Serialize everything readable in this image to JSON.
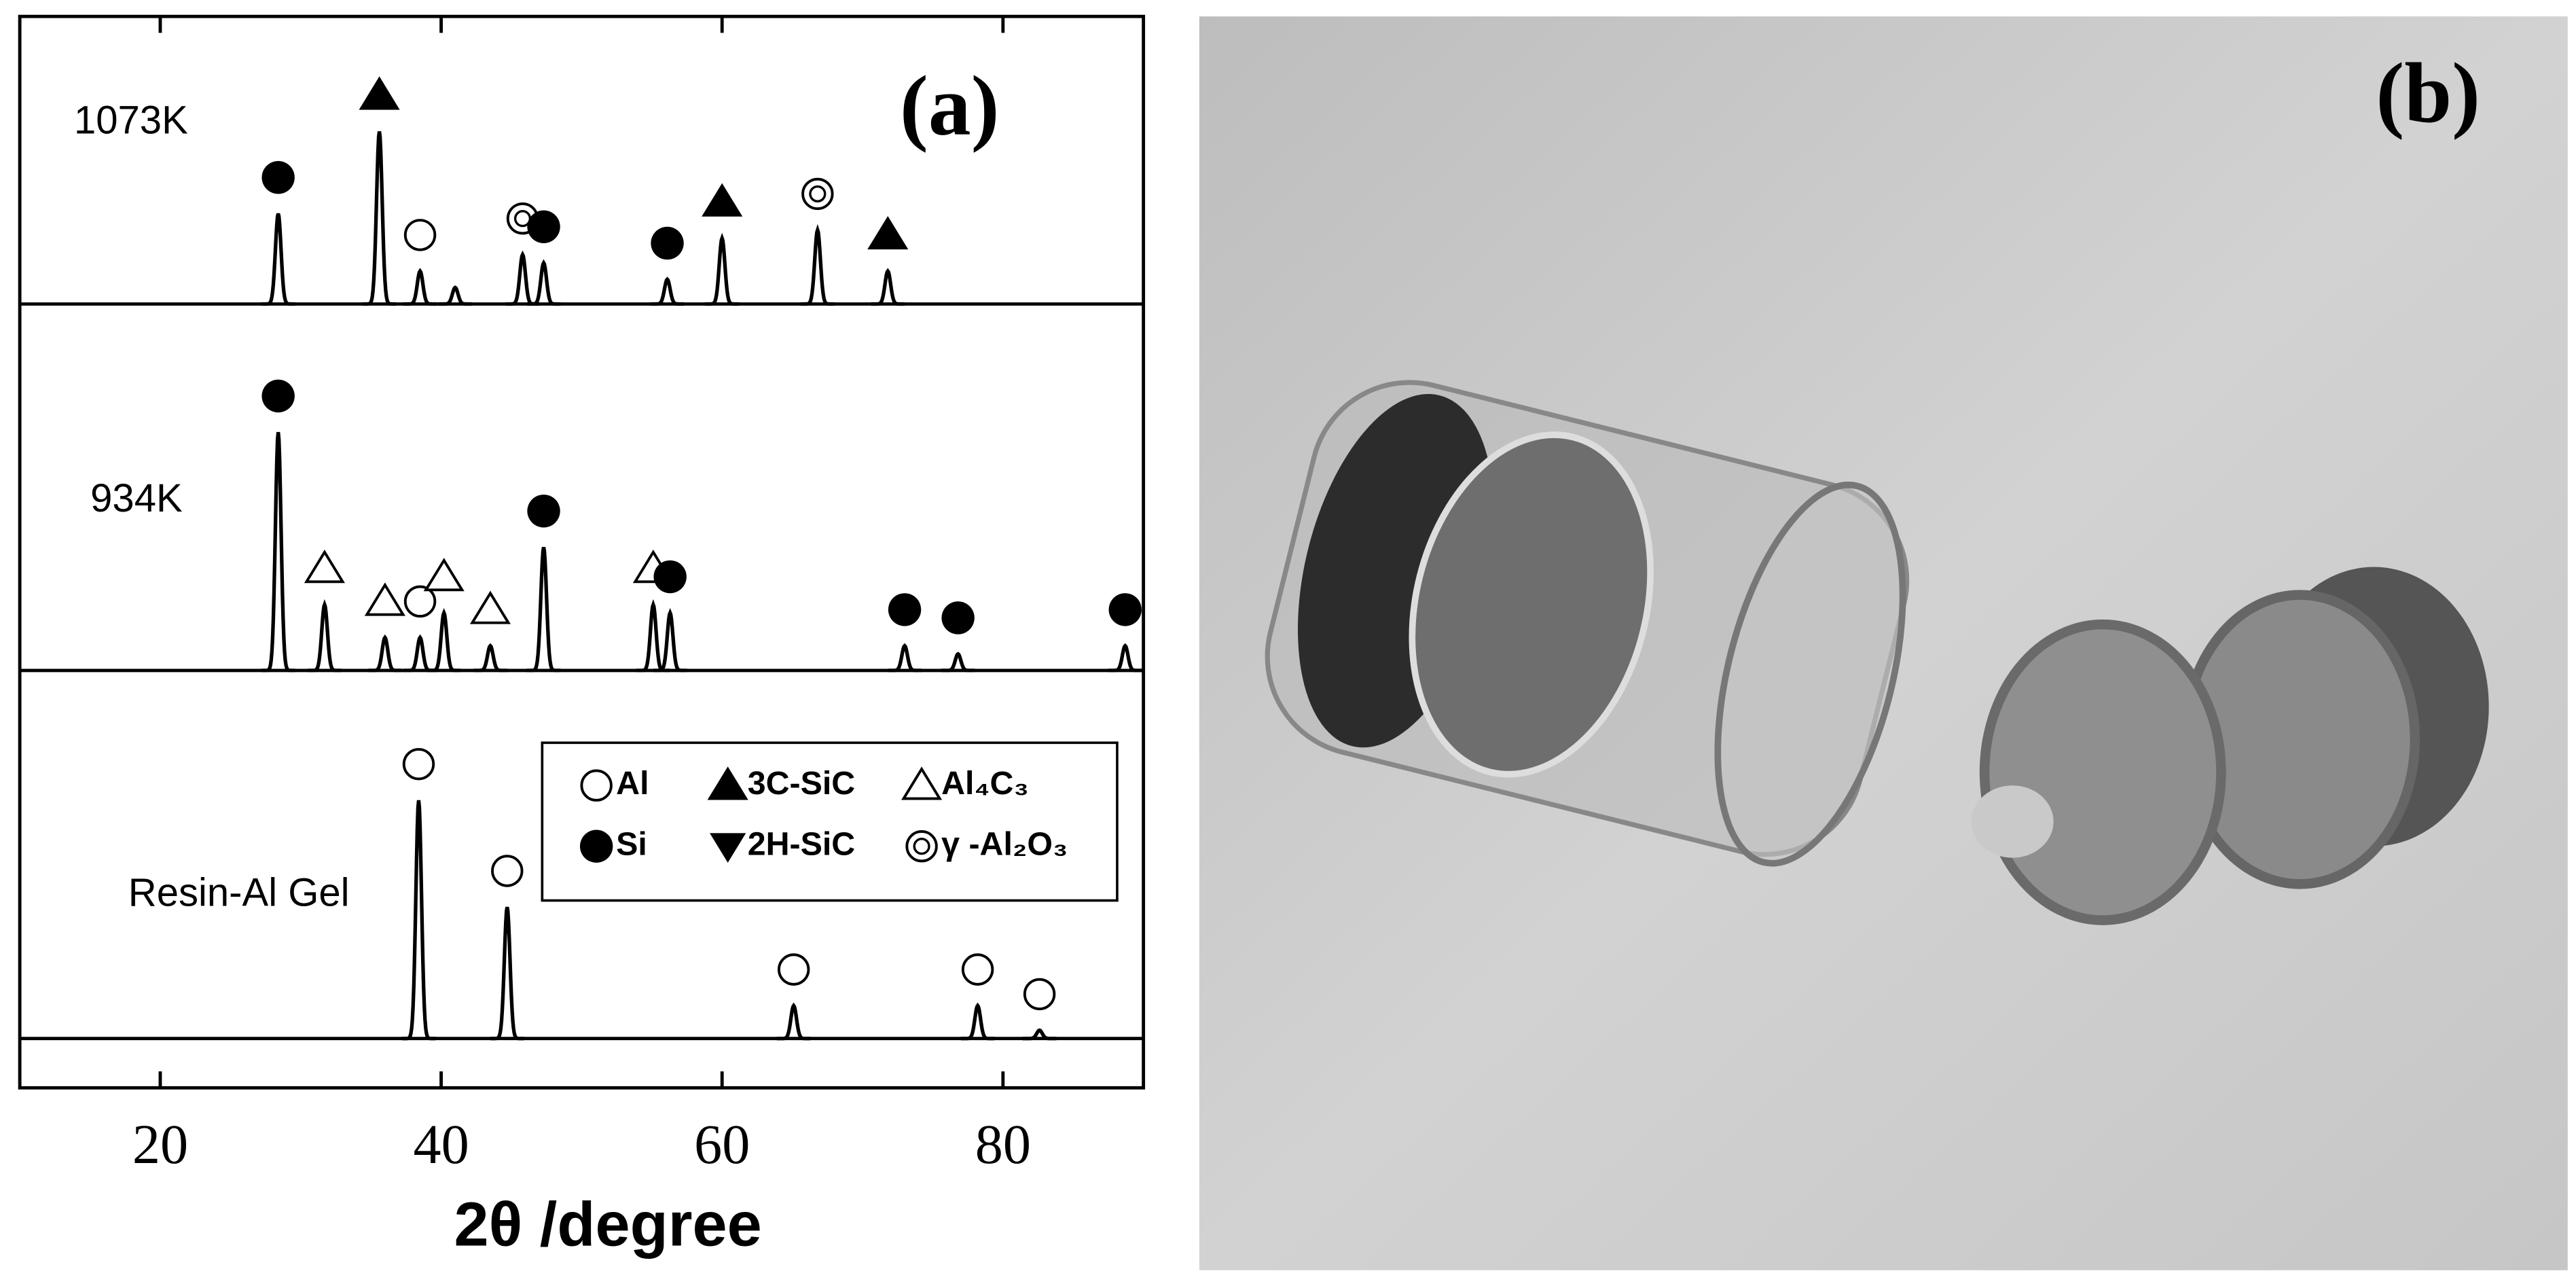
{
  "chart_data": {
    "type": "xrd-stack",
    "panel_label": "(a)",
    "x_label": "2θ /degree",
    "xlim": [
      10,
      90
    ],
    "xticks": [
      20,
      40,
      60,
      80
    ],
    "ylim": [
      0,
      652
    ],
    "legend": [
      {
        "name": "Al",
        "symbol": "open-circle"
      },
      {
        "name": "3C-SiC",
        "symbol": "filled-triangle-up"
      },
      {
        "name": "Al₄C₃",
        "symbol": "open-triangle-up"
      },
      {
        "name": "Si",
        "symbol": "filled-circle"
      },
      {
        "name": "2H-SiC",
        "symbol": "filled-triangle-down"
      },
      {
        "name": "γ -Al₂O₃",
        "symbol": "double-circle"
      }
    ],
    "series": [
      {
        "name": "1073K",
        "offset": 477,
        "peaks": [
          {
            "x": 28.4,
            "height": 55,
            "phase": "Si"
          },
          {
            "x": 35.6,
            "height": 105,
            "phase": "3C-SiC"
          },
          {
            "x": 38.5,
            "height": 20,
            "phase": "Al"
          },
          {
            "x": 41.0,
            "height": 10,
            "phase": null
          },
          {
            "x": 45.8,
            "height": 30,
            "phase": "γ -Al₂O₃"
          },
          {
            "x": 47.3,
            "height": 25,
            "phase": "Si"
          },
          {
            "x": 56.1,
            "height": 15,
            "phase": "Si"
          },
          {
            "x": 60.0,
            "height": 40,
            "phase": "3C-SiC"
          },
          {
            "x": 66.8,
            "height": 45,
            "phase": "γ -Al₂O₃"
          },
          {
            "x": 71.8,
            "height": 20,
            "phase": "3C-SiC"
          }
        ]
      },
      {
        "name": "934K",
        "offset": 254,
        "peaks": [
          {
            "x": 28.4,
            "height": 145,
            "phase": "Si"
          },
          {
            "x": 31.7,
            "height": 40,
            "phase": "Al₄C₃"
          },
          {
            "x": 36.0,
            "height": 20,
            "phase": "Al₄C₃"
          },
          {
            "x": 38.5,
            "height": 20,
            "phase": "Al"
          },
          {
            "x": 40.2,
            "height": 35,
            "phase": "Al₄C₃"
          },
          {
            "x": 43.5,
            "height": 15,
            "phase": "Al₄C₃"
          },
          {
            "x": 47.3,
            "height": 75,
            "phase": "Si"
          },
          {
            "x": 55.1,
            "height": 40,
            "phase": "Al₄C₃"
          },
          {
            "x": 56.3,
            "height": 35,
            "phase": "Si"
          },
          {
            "x": 73.0,
            "height": 15,
            "phase": "Si"
          },
          {
            "x": 76.8,
            "height": 10,
            "phase": "Si"
          },
          {
            "x": 88.7,
            "height": 15,
            "phase": "Si"
          }
        ]
      },
      {
        "name": "Resin-Al Gel",
        "offset": 30,
        "peaks": [
          {
            "x": 38.4,
            "height": 145,
            "phase": "Al"
          },
          {
            "x": 44.7,
            "height": 80,
            "phase": "Al"
          },
          {
            "x": 65.1,
            "height": 20,
            "phase": "Al"
          },
          {
            "x": 78.2,
            "height": 20,
            "phase": "Al"
          },
          {
            "x": 82.6,
            "height": 5,
            "phase": "Al"
          }
        ]
      }
    ]
  },
  "photo": {
    "panel_label": "(b)"
  }
}
